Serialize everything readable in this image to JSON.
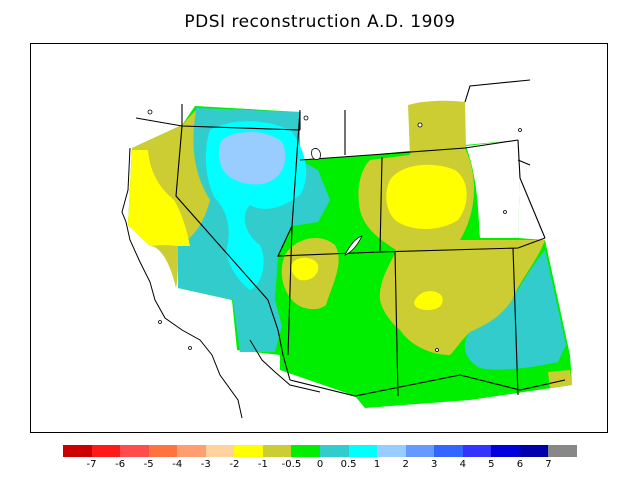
{
  "title": "PDSI reconstruction A.D. 1909",
  "legend": {
    "colors": [
      "#cc0000",
      "#ff1a1a",
      "#ff4d4d",
      "#ff7340",
      "#ff9f70",
      "#ffd2a0",
      "#ffff00",
      "#cccc33",
      "#00ee00",
      "#33cccc",
      "#00ffff",
      "#99ccff",
      "#6699ff",
      "#3366ff",
      "#3333ff",
      "#0000dd",
      "#0000aa",
      "#888888"
    ],
    "labels": [
      "-7",
      "-6",
      "-5",
      "-4",
      "-3",
      "-2",
      "-1",
      "-0.5",
      "0",
      "0.5",
      "1",
      "2",
      "3",
      "4",
      "5",
      "6",
      "7"
    ]
  },
  "map": {
    "colors": {
      "dry": "#ffff00",
      "slightly_dry": "#cccc33",
      "near_normal": "#00ee00",
      "slightly_wet": "#33cccc",
      "wet": "#00ffff",
      "wetter": "#99ccff",
      "no_data": "#ffffff",
      "boundary": "#000000"
    },
    "features": [
      "state-boundaries",
      "great-salt-lake",
      "california-coastline",
      "pdsi-contours"
    ]
  }
}
